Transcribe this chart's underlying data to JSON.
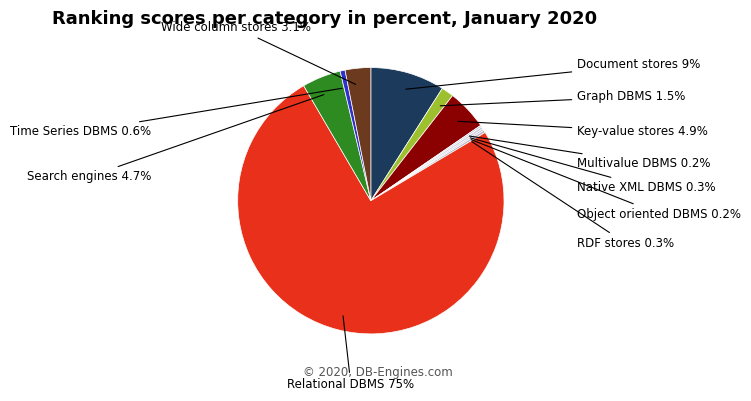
{
  "title": "Ranking scores per category in percent, January 2020",
  "footer": "© 2020, DB-Engines.com",
  "categories_ordered": [
    "Document stores",
    "Graph DBMS",
    "Key-value stores",
    "Multivalue DBMS",
    "Native XML DBMS",
    "Object oriented DBMS",
    "RDF stores",
    "Relational DBMS",
    "Search engines",
    "Time Series DBMS",
    "Wide column stores"
  ],
  "values_ordered": [
    9.0,
    1.5,
    4.9,
    0.2,
    0.3,
    0.2,
    0.3,
    75.0,
    4.7,
    0.6,
    3.1
  ],
  "colors_ordered": [
    "#1b3a5c",
    "#9dc02e",
    "#8b0000",
    "#c8c8d8",
    "#d0d0e0",
    "#c0c0d0",
    "#b8b8cc",
    "#e8301a",
    "#2e8b22",
    "#3030cc",
    "#6b3a1f"
  ],
  "labels_ordered": [
    "Document stores 9%",
    "Graph DBMS 1.5%",
    "Key-value stores 4.9%",
    "Multivalue DBMS 0.2%",
    "Native XML DBMS 0.3%",
    "Object oriented DBMS 0.2%",
    "RDF stores 0.3%",
    "Relational DBMS 75%",
    "Search engines 4.7%",
    "Time Series DBMS 0.6%",
    "Wide column stores 3.1%"
  ],
  "start_angle": 90,
  "background_color": "#ffffff",
  "label_positions": {
    "Document stores 9%": [
      1.55,
      1.02,
      "left"
    ],
    "Graph DBMS 1.5%": [
      1.55,
      0.78,
      "left"
    ],
    "Key-value stores 4.9%": [
      1.55,
      0.52,
      "left"
    ],
    "Multivalue DBMS 0.2%": [
      1.55,
      0.28,
      "left"
    ],
    "Native XML DBMS 0.3%": [
      1.55,
      0.1,
      "left"
    ],
    "Object oriented DBMS 0.2%": [
      1.55,
      -0.1,
      "left"
    ],
    "RDF stores 0.3%": [
      1.55,
      -0.32,
      "left"
    ],
    "Relational DBMS 75%": [
      -0.15,
      -1.38,
      "center"
    ],
    "Search engines 4.7%": [
      -1.65,
      0.18,
      "right"
    ],
    "Time Series DBMS 0.6%": [
      -1.65,
      0.52,
      "right"
    ],
    "Wide column stores 3.1%": [
      -0.45,
      1.3,
      "right"
    ]
  }
}
